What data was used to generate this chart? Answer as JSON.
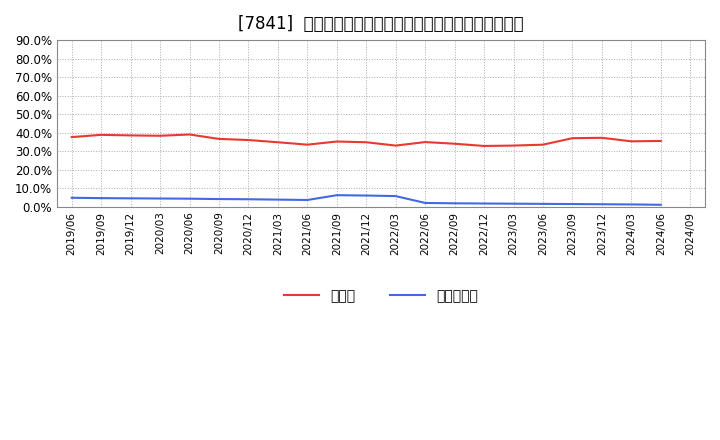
{
  "title": "[7841]  現預金、有利子負債の総資産に対する比率の推移",
  "ylim": [
    0.0,
    0.9
  ],
  "yticks": [
    0.0,
    0.1,
    0.2,
    0.3,
    0.4,
    0.5,
    0.6,
    0.7,
    0.8,
    0.9
  ],
  "dates": [
    "2019/06",
    "2019/09",
    "2019/12",
    "2020/03",
    "2020/06",
    "2020/09",
    "2020/12",
    "2021/03",
    "2021/06",
    "2021/09",
    "2021/12",
    "2022/03",
    "2022/06",
    "2022/09",
    "2022/12",
    "2023/03",
    "2023/06",
    "2023/09",
    "2023/12",
    "2024/03",
    "2024/06",
    "2024/09"
  ],
  "cash": [
    0.376,
    0.388,
    0.385,
    0.383,
    0.39,
    0.366,
    0.36,
    0.348,
    0.335,
    0.352,
    0.348,
    0.33,
    0.349,
    0.34,
    0.328,
    0.33,
    0.335,
    0.37,
    0.372,
    0.353,
    0.355,
    null
  ],
  "debt": [
    0.048,
    0.046,
    0.045,
    0.044,
    0.043,
    0.041,
    0.04,
    0.038,
    0.036,
    0.062,
    0.06,
    0.057,
    0.02,
    0.018,
    0.017,
    0.016,
    0.015,
    0.014,
    0.013,
    0.012,
    0.01,
    null
  ],
  "cash_color": "#e8382f",
  "debt_color": "#4169e1",
  "background_color": "#ffffff",
  "grid_color": "#aaaaaa",
  "title_fontsize": 12,
  "legend_labels": [
    "現預金",
    "有利子負債"
  ]
}
